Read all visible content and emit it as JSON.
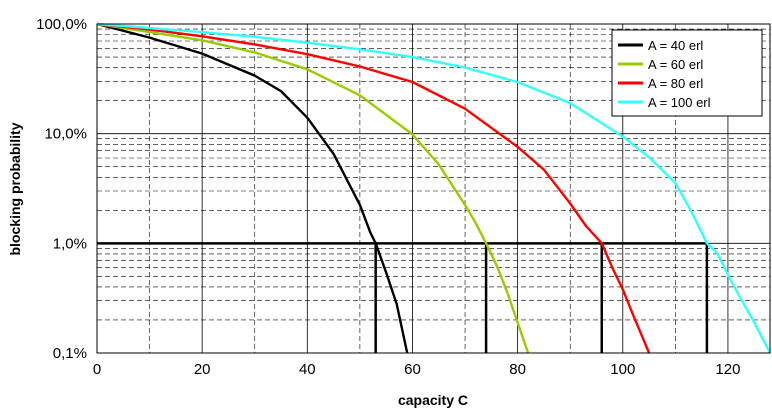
{
  "chart_data": {
    "type": "line",
    "xlabel": "capacity C",
    "ylabel": "blocking probability",
    "xlim": [
      0,
      128
    ],
    "ylim": [
      0.001,
      1
    ],
    "y_scale": "log",
    "x_ticks": [
      0,
      20,
      40,
      60,
      80,
      100,
      120
    ],
    "x_tick_labels": [
      "0",
      "20",
      "40",
      "60",
      "80",
      "100",
      "120"
    ],
    "y_ticks": [
      0.001,
      0.01,
      0.1,
      1
    ],
    "y_tick_labels": [
      "0,1%",
      "1,0%",
      "10,0%",
      "100,0%"
    ],
    "grid": true,
    "legend_position": "top-right",
    "reference_level": 0.01,
    "series": [
      {
        "name": "A = 40 erl",
        "color": "#000000",
        "points": [
          [
            0,
            1
          ],
          [
            10,
            0.751
          ],
          [
            20,
            0.5377
          ],
          [
            30,
            0.3383
          ],
          [
            35,
            0.2445
          ],
          [
            40,
            0.1398
          ],
          [
            45,
            0.0654
          ],
          [
            50,
            0.0224
          ],
          [
            52,
            0.0125
          ],
          [
            53,
            0.01
          ],
          [
            55,
            0.0054
          ],
          [
            57,
            0.0028
          ],
          [
            59,
            0.001
          ]
        ],
        "capacity_at_reference": 53
      },
      {
        "name": "A = 60 erl",
        "color": "#99cc00",
        "points": [
          [
            0,
            1
          ],
          [
            10,
            0.843
          ],
          [
            20,
            0.71
          ],
          [
            30,
            0.551
          ],
          [
            40,
            0.386
          ],
          [
            50,
            0.224
          ],
          [
            60,
            0.0984
          ],
          [
            65,
            0.0523
          ],
          [
            70,
            0.0224
          ],
          [
            72,
            0.0154
          ],
          [
            74,
            0.01
          ],
          [
            76,
            0.0063
          ],
          [
            78,
            0.0036
          ],
          [
            80,
            0.0019
          ],
          [
            82,
            0.001
          ]
        ],
        "capacity_at_reference": 74
      },
      {
        "name": "A = 80 erl",
        "color": "#ff0000",
        "points": [
          [
            0,
            1
          ],
          [
            10,
            0.889
          ],
          [
            20,
            0.7717
          ],
          [
            30,
            0.6522
          ],
          [
            40,
            0.53
          ],
          [
            50,
            0.41
          ],
          [
            60,
            0.296
          ],
          [
            70,
            0.1688
          ],
          [
            80,
            0.0757
          ],
          [
            85,
            0.0469
          ],
          [
            90,
            0.0231
          ],
          [
            93,
            0.0144
          ],
          [
            96,
            0.01
          ],
          [
            98,
            0.006
          ],
          [
            100,
            0.0038
          ],
          [
            102,
            0.0022
          ],
          [
            105,
            0.001
          ]
        ],
        "capacity_at_reference": 96
      },
      {
        "name": "A = 100 erl",
        "color": "#33ffff",
        "points": [
          [
            0,
            1
          ],
          [
            10,
            0.918
          ],
          [
            20,
            0.8422
          ],
          [
            30,
            0.7642
          ],
          [
            40,
            0.6759
          ],
          [
            50,
            0.5875
          ],
          [
            60,
            0.4992
          ],
          [
            70,
            0.4005
          ],
          [
            80,
            0.295
          ],
          [
            90,
            0.1899
          ],
          [
            100,
            0.0941
          ],
          [
            105,
            0.0608
          ],
          [
            110,
            0.0354
          ],
          [
            113,
            0.0197
          ],
          [
            116,
            0.01
          ],
          [
            118,
            0.0081
          ],
          [
            120,
            0.0052
          ],
          [
            122,
            0.0034
          ],
          [
            125,
            0.0019
          ],
          [
            128,
            0.001
          ]
        ],
        "capacity_at_reference": 116
      }
    ]
  }
}
